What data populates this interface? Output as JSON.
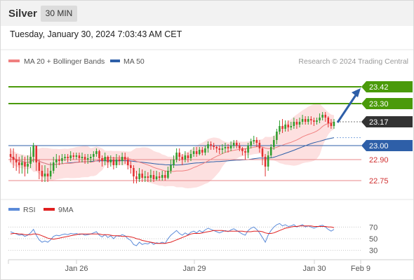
{
  "header": {
    "symbol": "Silver",
    "timeframe": "30 MIN"
  },
  "datetime": "Tuesday, January 30, 2024 7:03:43 AM CET",
  "legend": {
    "ma20": {
      "label": "MA 20 + Bollinger Bands",
      "color": "#f08080"
    },
    "ma50": {
      "label": "MA 50",
      "color": "#2e5fa8"
    },
    "credit": "Research © 2024 Trading Central"
  },
  "rsi_legend": {
    "rsi": {
      "label": "RSI",
      "color": "#5b8bd9"
    },
    "ma9": {
      "label": "9MA",
      "color": "#e02020"
    }
  },
  "colors": {
    "up": "#2e9e2e",
    "down": "#e23030",
    "target": "#4a9a0a",
    "pivot": "#2e5fa8",
    "support": "#e8878a",
    "last": "#333333",
    "arrow": "#2e5fa8",
    "band": "#fde0e0"
  },
  "chart_data": [
    {
      "type": "candlestick",
      "title": "",
      "x_ticks": [
        "Jan 26",
        "Jan 29",
        "Jan 30",
        "Feb 9"
      ],
      "ylim": [
        22.665,
        23.535
      ],
      "levels": [
        {
          "value": 23.42,
          "label": "23.42",
          "kind": "target"
        },
        {
          "value": 23.3,
          "label": "23.30",
          "kind": "target"
        },
        {
          "value": 23.17,
          "label": "23.17",
          "kind": "last"
        },
        {
          "value": 23.0,
          "label": "23.00",
          "kind": "pivot"
        },
        {
          "value": 22.9,
          "label": "22.90",
          "kind": "support"
        },
        {
          "value": 22.75,
          "label": "22.75",
          "kind": "support"
        }
      ],
      "arrow": {
        "from": 23.17,
        "to": 23.42
      },
      "candles": [
        [
          22.94,
          22.92,
          22.98,
          22.88
        ],
        [
          22.92,
          22.9,
          22.98,
          22.84
        ],
        [
          22.9,
          22.88,
          22.94,
          22.82
        ],
        [
          22.88,
          22.86,
          22.92,
          22.8
        ],
        [
          22.86,
          22.88,
          22.93,
          22.8
        ],
        [
          22.88,
          22.85,
          22.92,
          22.78
        ],
        [
          22.85,
          22.87,
          22.93,
          22.8
        ],
        [
          22.87,
          22.92,
          22.99,
          22.84
        ],
        [
          22.92,
          23.0,
          23.02,
          22.88
        ],
        [
          23.0,
          22.88,
          23.0,
          22.82
        ],
        [
          22.88,
          22.82,
          22.9,
          22.76
        ],
        [
          22.82,
          22.78,
          22.86,
          22.74
        ],
        [
          22.78,
          22.8,
          22.86,
          22.74
        ],
        [
          22.8,
          22.78,
          22.84,
          22.74
        ],
        [
          22.78,
          22.82,
          22.88,
          22.76
        ],
        [
          22.82,
          22.88,
          22.92,
          22.8
        ],
        [
          22.88,
          22.9,
          22.94,
          22.84
        ],
        [
          22.9,
          22.89,
          22.93,
          22.86
        ],
        [
          22.89,
          22.91,
          22.94,
          22.87
        ],
        [
          22.91,
          22.92,
          22.94,
          22.89
        ],
        [
          22.92,
          22.91,
          22.94,
          22.88
        ],
        [
          22.91,
          22.93,
          22.96,
          22.89
        ],
        [
          22.93,
          22.92,
          22.95,
          22.9
        ],
        [
          22.92,
          22.93,
          22.95,
          22.9
        ],
        [
          22.93,
          22.91,
          22.95,
          22.88
        ],
        [
          22.91,
          22.92,
          22.95,
          22.88
        ],
        [
          22.92,
          22.9,
          22.94,
          22.87
        ],
        [
          22.9,
          22.91,
          22.94,
          22.87
        ],
        [
          22.91,
          22.92,
          22.94,
          22.88
        ],
        [
          22.92,
          22.94,
          22.96,
          22.89
        ],
        [
          22.94,
          22.96,
          22.98,
          22.92
        ],
        [
          22.96,
          22.91,
          22.97,
          22.88
        ],
        [
          22.91,
          22.89,
          22.93,
          22.85
        ],
        [
          22.89,
          22.92,
          22.95,
          22.86
        ],
        [
          22.92,
          22.88,
          22.93,
          22.84
        ],
        [
          22.88,
          22.9,
          22.93,
          22.85
        ],
        [
          22.9,
          22.86,
          22.92,
          22.83
        ],
        [
          22.86,
          22.9,
          22.94,
          22.84
        ],
        [
          22.9,
          22.89,
          22.93,
          22.86
        ],
        [
          22.89,
          22.92,
          22.95,
          22.86
        ],
        [
          22.92,
          22.9,
          22.95,
          22.87
        ],
        [
          22.9,
          22.86,
          22.92,
          22.83
        ],
        [
          22.86,
          22.84,
          22.89,
          22.8
        ],
        [
          22.84,
          22.78,
          22.86,
          22.73
        ],
        [
          22.78,
          22.76,
          22.82,
          22.73
        ],
        [
          22.76,
          22.8,
          22.84,
          22.74
        ],
        [
          22.8,
          22.77,
          22.83,
          22.74
        ],
        [
          22.77,
          22.78,
          22.82,
          22.74
        ],
        [
          22.78,
          22.77,
          22.81,
          22.74
        ],
        [
          22.77,
          22.79,
          22.83,
          22.74
        ],
        [
          22.79,
          22.76,
          22.82,
          22.74
        ],
        [
          22.76,
          22.78,
          22.82,
          22.75
        ],
        [
          22.78,
          22.77,
          22.81,
          22.75
        ],
        [
          22.77,
          22.79,
          22.82,
          22.75
        ],
        [
          22.79,
          22.77,
          22.82,
          22.75
        ],
        [
          22.77,
          22.82,
          22.85,
          22.76
        ],
        [
          22.82,
          22.86,
          22.9,
          22.8
        ],
        [
          22.86,
          22.9,
          22.93,
          22.84
        ],
        [
          22.9,
          22.95,
          22.98,
          22.88
        ],
        [
          22.95,
          22.92,
          22.98,
          22.89
        ],
        [
          22.92,
          22.9,
          22.94,
          22.86
        ],
        [
          22.9,
          22.93,
          22.96,
          22.88
        ],
        [
          22.93,
          22.91,
          22.95,
          22.88
        ],
        [
          22.91,
          22.94,
          22.97,
          22.89
        ],
        [
          22.94,
          22.96,
          22.99,
          22.92
        ],
        [
          22.96,
          22.94,
          22.99,
          22.92
        ],
        [
          22.94,
          22.97,
          22.99,
          22.93
        ],
        [
          22.97,
          22.95,
          22.99,
          22.93
        ],
        [
          22.95,
          22.98,
          23.0,
          22.93
        ],
        [
          22.98,
          23.01,
          23.03,
          22.95
        ],
        [
          23.01,
          23.0,
          23.03,
          22.97
        ],
        [
          23.0,
          22.99,
          23.02,
          22.97
        ],
        [
          22.99,
          22.98,
          23.0,
          22.95
        ],
        [
          22.98,
          22.97,
          23.0,
          22.94
        ],
        [
          22.97,
          22.98,
          23.01,
          22.94
        ],
        [
          22.98,
          22.99,
          23.02,
          22.95
        ],
        [
          22.99,
          22.98,
          23.01,
          22.95
        ],
        [
          22.98,
          23.0,
          23.03,
          22.96
        ],
        [
          23.0,
          23.02,
          23.04,
          22.98
        ],
        [
          23.02,
          23.0,
          23.04,
          22.98
        ],
        [
          23.0,
          22.98,
          23.02,
          22.96
        ],
        [
          22.98,
          22.96,
          22.99,
          22.93
        ],
        [
          22.96,
          22.95,
          22.98,
          22.9
        ],
        [
          22.95,
          23.0,
          23.02,
          22.91
        ],
        [
          23.0,
          23.03,
          23.05,
          22.98
        ],
        [
          23.03,
          23.04,
          23.07,
          23.01
        ],
        [
          23.04,
          23.02,
          23.06,
          22.99
        ],
        [
          23.02,
          22.98,
          23.04,
          22.95
        ],
        [
          22.98,
          22.92,
          22.99,
          22.86
        ],
        [
          22.92,
          22.85,
          22.94,
          22.78
        ],
        [
          22.85,
          22.93,
          22.96,
          22.82
        ],
        [
          22.93,
          22.99,
          23.01,
          22.91
        ],
        [
          22.99,
          23.04,
          23.07,
          22.97
        ],
        [
          23.04,
          23.1,
          23.12,
          23.01
        ],
        [
          23.1,
          23.14,
          23.18,
          23.08
        ],
        [
          23.14,
          23.12,
          23.19,
          23.09
        ],
        [
          23.12,
          23.15,
          23.18,
          23.1
        ],
        [
          23.15,
          23.13,
          23.18,
          23.1
        ],
        [
          23.13,
          23.14,
          23.17,
          23.11
        ],
        [
          23.14,
          23.17,
          23.2,
          23.12
        ],
        [
          23.17,
          23.15,
          23.19,
          23.12
        ],
        [
          23.15,
          23.17,
          23.2,
          23.13
        ],
        [
          23.17,
          23.19,
          23.22,
          23.15
        ],
        [
          23.19,
          23.17,
          23.21,
          23.15
        ],
        [
          23.17,
          23.19,
          23.21,
          23.15
        ],
        [
          23.19,
          23.18,
          23.21,
          23.15
        ],
        [
          23.18,
          23.17,
          23.2,
          23.14
        ],
        [
          23.17,
          23.18,
          23.2,
          23.15
        ],
        [
          23.18,
          23.2,
          23.23,
          23.16
        ],
        [
          23.2,
          23.22,
          23.24,
          23.18
        ],
        [
          23.22,
          23.2,
          23.24,
          23.17
        ],
        [
          23.2,
          23.16,
          23.21,
          23.13
        ],
        [
          23.16,
          23.14,
          23.19,
          23.12
        ],
        [
          23.14,
          23.17,
          23.19,
          23.12
        ]
      ]
    },
    {
      "type": "line",
      "title": "",
      "ylim": [
        20,
        80
      ],
      "y_ticks": [
        70,
        50,
        30
      ],
      "series": [
        {
          "name": "RSI",
          "values": [
            62,
            60,
            58,
            56,
            57,
            54,
            56,
            60,
            66,
            56,
            48,
            44,
            46,
            44,
            48,
            54,
            56,
            55,
            57,
            58,
            57,
            59,
            58,
            59,
            57,
            58,
            56,
            57,
            58,
            60,
            62,
            56,
            53,
            57,
            52,
            55,
            50,
            55,
            54,
            57,
            55,
            50,
            47,
            40,
            38,
            44,
            40,
            42,
            41,
            44,
            40,
            43,
            42,
            44,
            42,
            50,
            56,
            60,
            64,
            59,
            56,
            60,
            57,
            61,
            63,
            60,
            64,
            61,
            65,
            68,
            66,
            64,
            62,
            60,
            62,
            64,
            62,
            65,
            67,
            64,
            61,
            58,
            56,
            64,
            68,
            70,
            66,
            60,
            52,
            44,
            56,
            64,
            70,
            74,
            76,
            72,
            74,
            71,
            72,
            74,
            70,
            72,
            74,
            70,
            72,
            70,
            68,
            70,
            72,
            73,
            70,
            66,
            63,
            66
          ]
        },
        {
          "name": "9MA",
          "values": [
            58,
            59,
            59,
            58,
            58,
            57,
            57,
            57,
            58,
            58,
            57,
            55,
            53,
            51,
            50,
            49,
            50,
            51,
            52,
            53,
            54,
            55,
            56,
            57,
            58,
            58,
            58,
            58,
            58,
            58,
            58,
            58,
            57,
            57,
            57,
            56,
            55,
            55,
            55,
            54,
            54,
            54,
            53,
            52,
            50,
            49,
            47,
            46,
            45,
            44,
            43,
            42,
            42,
            42,
            42,
            43,
            44,
            46,
            48,
            50,
            52,
            54,
            56,
            58,
            59,
            59,
            59,
            60,
            61,
            62,
            63,
            64,
            64,
            64,
            64,
            63,
            63,
            63,
            63,
            63,
            63,
            63,
            62,
            62,
            62,
            63,
            63,
            63,
            62,
            60,
            59,
            59,
            60,
            62,
            64,
            66,
            68,
            69,
            70,
            71,
            71,
            72,
            72,
            72,
            72,
            72,
            71,
            71,
            71,
            71,
            71,
            70,
            70,
            69
          ]
        }
      ]
    }
  ]
}
